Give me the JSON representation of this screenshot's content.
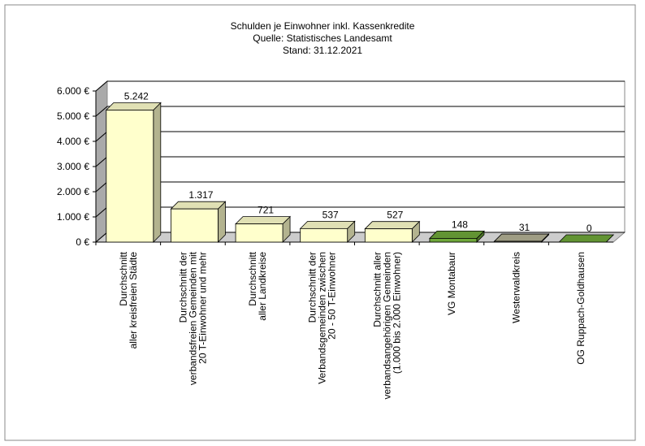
{
  "chart_data": {
    "type": "bar3d",
    "title": [
      "Schulden je Einwohner inkl. Kassenkredite",
      "Quelle: Statistisches Landesamt",
      "Stand: 31.12.2021"
    ],
    "categories": [
      [
        "Durchschnitt",
        "aller kreisfreien Städte"
      ],
      [
        "Durchschnitt der",
        "verbandsfreien Gemeinden mit",
        "20 T-Einwohner und mehr"
      ],
      [
        "Durchschnitt",
        "aller Landkreise"
      ],
      [
        "Durchschnitt der",
        "Verbandsgemeinden zwischen",
        "20 - 50 T-Einwohner"
      ],
      [
        "Durchschnitt aller",
        "verbandsangehörigen Gemeinden",
        "(1.000 bis 2.000 Einwohner)"
      ],
      [
        "VG Montabaur"
      ],
      [
        "Westerwaldkreis"
      ],
      [
        "OG Ruppach-Goldhausen"
      ]
    ],
    "values": [
      5242,
      1317,
      721,
      537,
      527,
      148,
      31,
      0
    ],
    "value_labels": [
      "5.242",
      "1.317",
      "721",
      "537",
      "527",
      "148",
      "31",
      "0"
    ],
    "colors": [
      "#ffffcc",
      "#ffffcc",
      "#ffffcc",
      "#ffffcc",
      "#ffffcc",
      "#6fa83a",
      "#b5b296",
      "#6fa83a"
    ],
    "ylim": [
      0,
      6000
    ],
    "yticks": [
      {
        "value": 0,
        "label": "0 €"
      },
      {
        "value": 1000,
        "label": "1.000 €"
      },
      {
        "value": 2000,
        "label": "2.000 €"
      },
      {
        "value": 3000,
        "label": "3.000 €"
      },
      {
        "value": 4000,
        "label": "4.000 €"
      },
      {
        "value": 5000,
        "label": "5.000 €"
      },
      {
        "value": 6000,
        "label": "6.000 €"
      }
    ],
    "grid": true
  }
}
